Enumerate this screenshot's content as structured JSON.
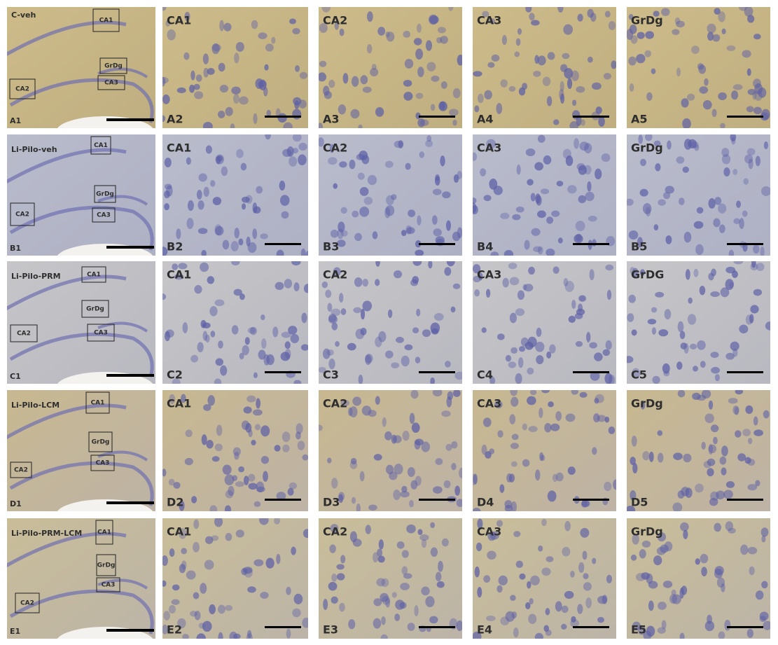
{
  "rows": [
    {
      "group": "C-veh",
      "overview_label": "A1",
      "boxes": [
        "CA1",
        "GrDg",
        "CA3",
        "CA2"
      ],
      "panels": [
        {
          "region": "CA1",
          "label": "A2"
        },
        {
          "region": "CA2",
          "label": "A3"
        },
        {
          "region": "CA3",
          "label": "A4"
        },
        {
          "region": "GrDg",
          "label": "A5"
        }
      ]
    },
    {
      "group": "Li-Pilo-veh",
      "overview_label": "B1",
      "boxes": [
        "CA1",
        "GrDg",
        "CA3",
        "CA2"
      ],
      "panels": [
        {
          "region": "CA1",
          "label": "B2"
        },
        {
          "region": "CA2",
          "label": "B3"
        },
        {
          "region": "CA3",
          "label": "B4"
        },
        {
          "region": "GrDg",
          "label": "B5"
        }
      ]
    },
    {
      "group": "Li-Pilo-PRM",
      "overview_label": "C1",
      "boxes": [
        "CA1",
        "GrDg",
        "CA3",
        "CA2"
      ],
      "panels": [
        {
          "region": "CA1",
          "label": "C2"
        },
        {
          "region": "CA2",
          "label": "C3"
        },
        {
          "region": "CA3",
          "label": "C4"
        },
        {
          "region": "GrDG",
          "label": "C5"
        }
      ]
    },
    {
      "group": "Li-Pilo-LCM",
      "overview_label": "D1",
      "boxes": [
        "CA1",
        "GrDg",
        "CA3",
        "CA2"
      ],
      "panels": [
        {
          "region": "CA1",
          "label": "D2"
        },
        {
          "region": "CA2",
          "label": "D3"
        },
        {
          "region": "CA3",
          "label": "D4"
        },
        {
          "region": "GrDg",
          "label": "D5"
        }
      ]
    },
    {
      "group": "Li-Pilo-PRM-LCM",
      "overview_label": "E1",
      "boxes": [
        "CA1",
        "GrDg",
        "CA3",
        "CA2"
      ],
      "panels": [
        {
          "region": "CA1",
          "label": "E2"
        },
        {
          "region": "CA2",
          "label": "E3"
        },
        {
          "region": "CA3",
          "label": "E4"
        },
        {
          "region": "GrDg",
          "label": "E5"
        }
      ]
    }
  ]
}
